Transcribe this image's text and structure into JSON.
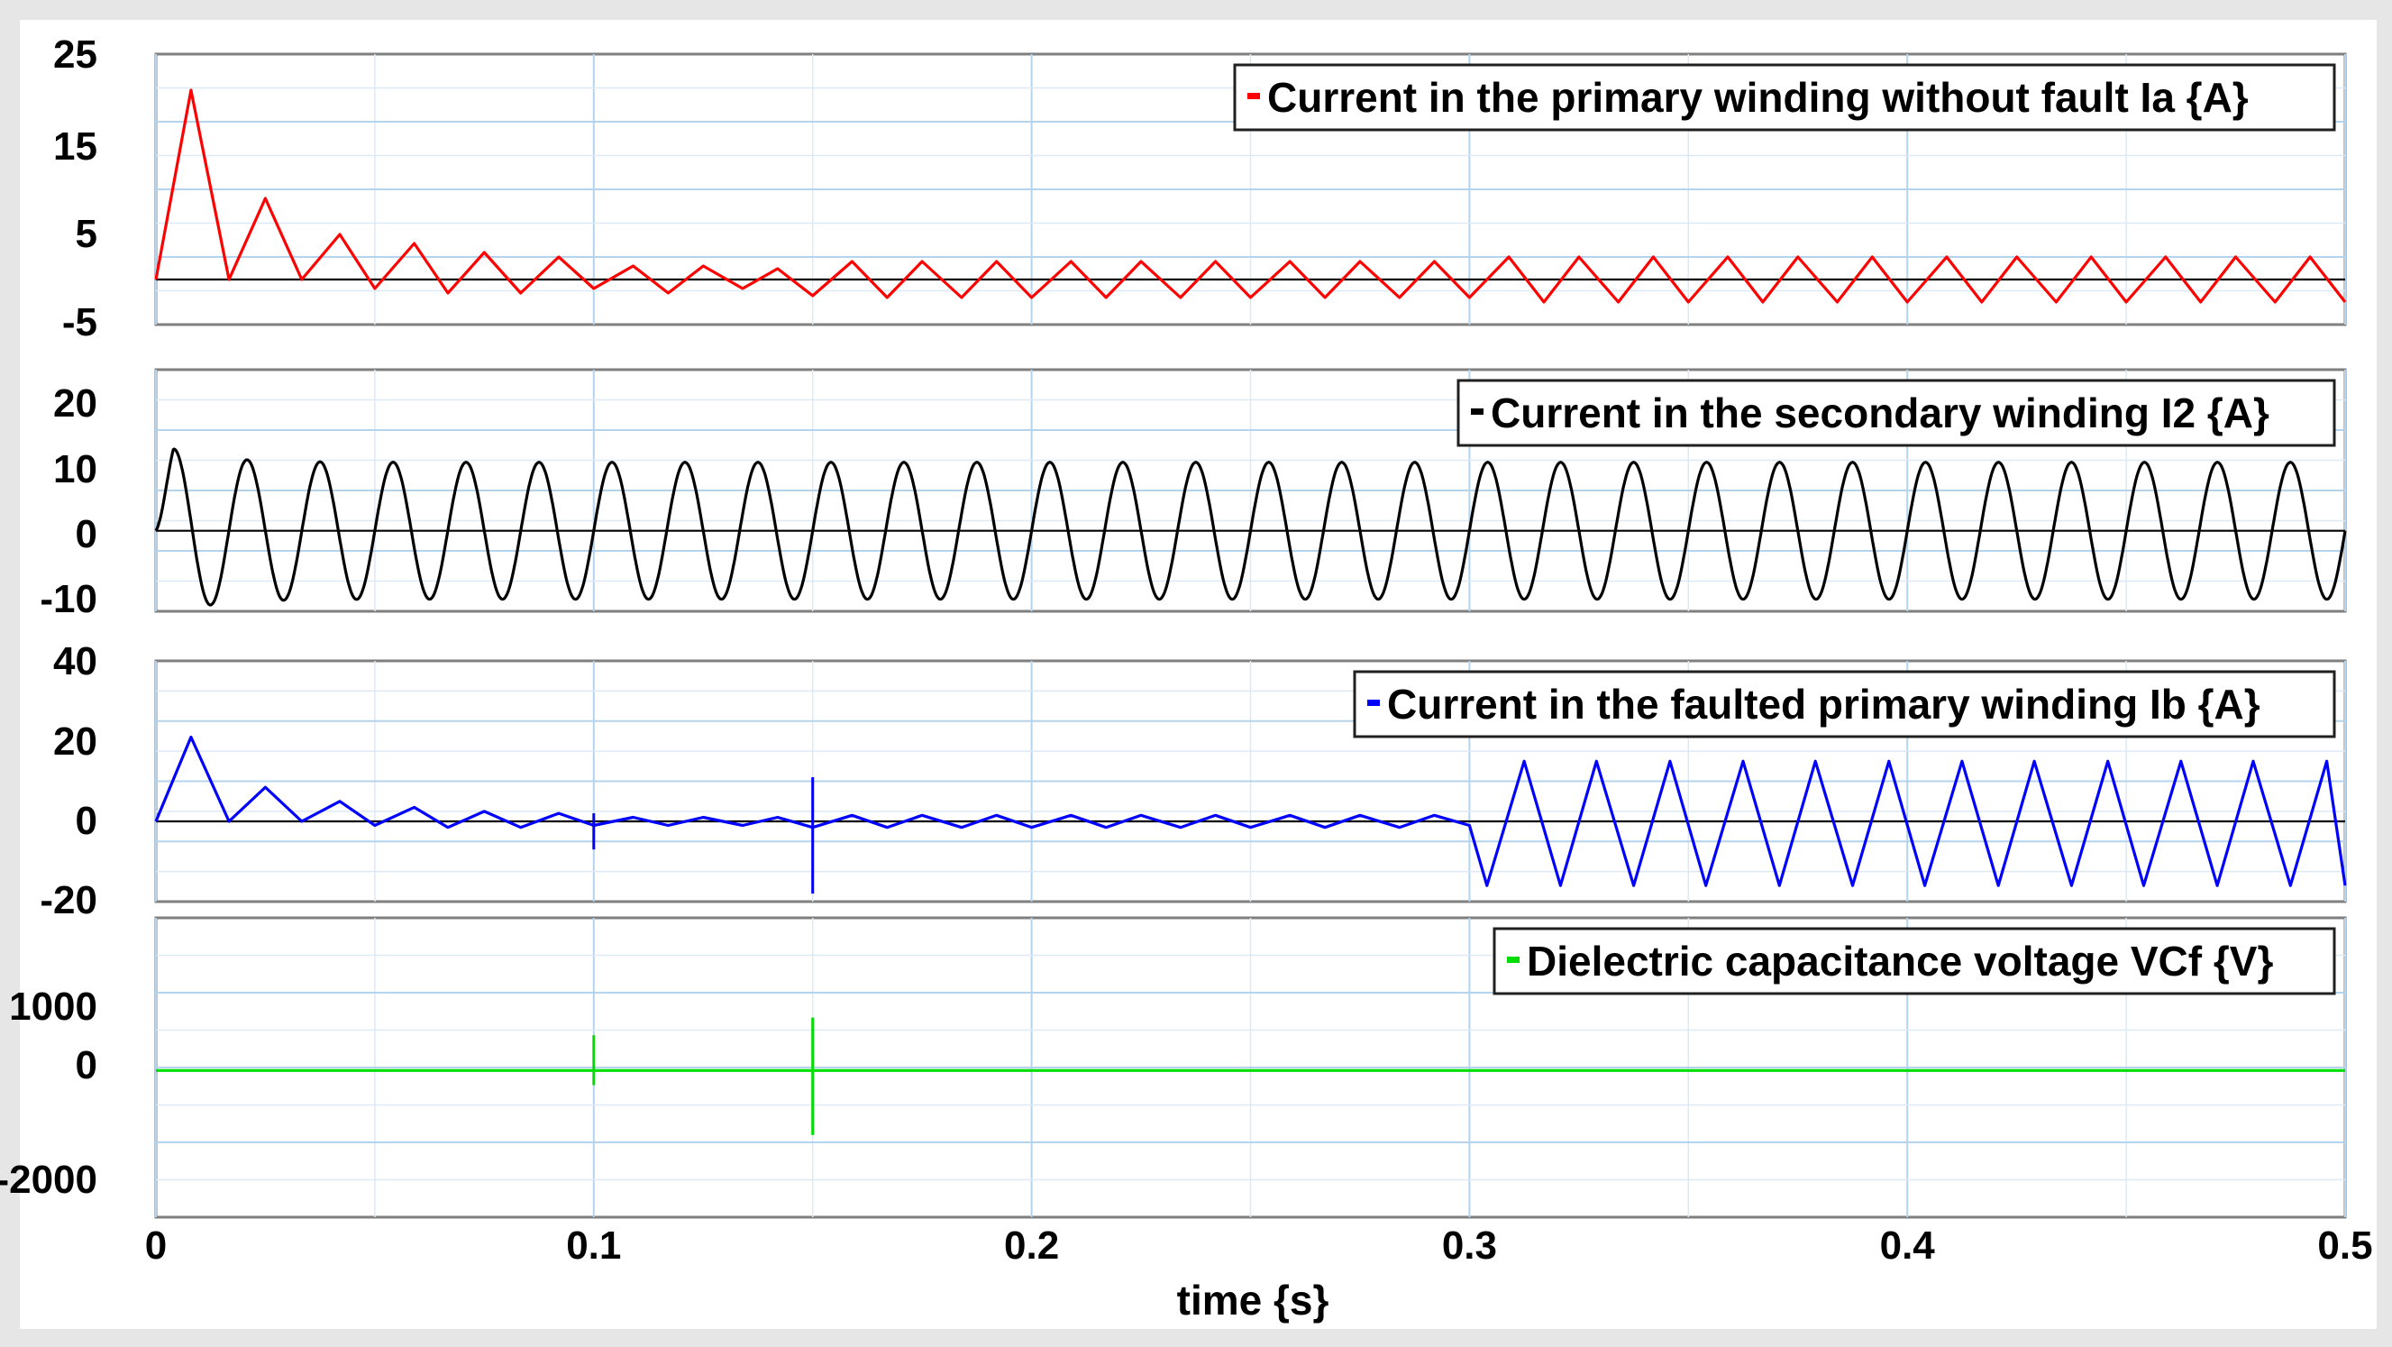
{
  "chart_data": [
    {
      "type": "line",
      "series": [
        {
          "name": "Current in the primary winding without fault Ia {A}",
          "color": "#ff0000",
          "x": [
            0.0,
            0.008,
            0.0167,
            0.025,
            0.0333,
            0.042,
            0.05,
            0.059,
            0.0667,
            0.075,
            0.0833,
            0.092,
            0.1,
            0.109,
            0.117,
            0.125,
            0.134,
            0.142,
            0.15,
            0.159,
            0.167,
            0.175,
            0.184,
            0.192,
            0.2,
            0.209,
            0.217,
            0.225,
            0.234,
            0.242,
            0.25,
            0.259,
            0.267,
            0.275,
            0.284,
            0.292,
            0.3,
            0.309,
            0.317,
            0.325,
            0.334,
            0.342,
            0.35,
            0.359,
            0.367,
            0.375,
            0.384,
            0.392,
            0.4,
            0.409,
            0.417,
            0.425,
            0.434,
            0.442,
            0.45,
            0.459,
            0.467,
            0.475,
            0.484,
            0.492,
            0.5
          ],
          "y": [
            0,
            21,
            0,
            9,
            0,
            5,
            -1,
            4,
            -1.5,
            3,
            -1.5,
            2.5,
            -1,
            1.5,
            -1.5,
            1.5,
            -1,
            1.2,
            -1.8,
            2,
            -2,
            2,
            -2,
            2,
            -2,
            2,
            -2,
            2,
            -2,
            2,
            -2,
            2,
            -2,
            2,
            -2,
            2,
            -2,
            2.5,
            -2.5,
            2.5,
            -2.5,
            2.5,
            -2.5,
            2.5,
            -2.5,
            2.5,
            -2.5,
            2.5,
            -2.5,
            2.5,
            -2.5,
            2.5,
            -2.5,
            2.5,
            -2.5,
            2.5,
            -2.5,
            2.5,
            -2.5,
            2.5,
            -2.5
          ]
        }
      ],
      "y_ticks": [
        "25",
        "15",
        "5",
        "-5"
      ],
      "ylim": [
        -5,
        25
      ],
      "xlim": [
        0,
        0.5
      ],
      "grid": true,
      "legend": "top-right"
    },
    {
      "type": "line",
      "series": [
        {
          "name": "Current in the secondary winding I2 {A}",
          "color": "#000000",
          "waveform": "sinusoid",
          "frequency_hz": 60,
          "amplitude": 8.5,
          "first_peak": 11,
          "x_range": [
            0,
            0.5
          ]
        }
      ],
      "y_ticks": [
        "20",
        "10",
        "0",
        "-10"
      ],
      "ylim": [
        -10,
        20
      ],
      "xlim": [
        0,
        0.5
      ],
      "grid": true,
      "legend": "top-right"
    },
    {
      "type": "line",
      "series": [
        {
          "name": "Current in the faulted primary winding Ib {A}",
          "color": "#0000ff",
          "x": [
            0.0,
            0.008,
            0.0167,
            0.025,
            0.0333,
            0.042,
            0.05,
            0.059,
            0.0667,
            0.075,
            0.0833,
            0.092,
            0.1,
            0.109,
            0.117,
            0.125,
            0.134,
            0.142,
            0.15,
            0.159,
            0.167,
            0.175,
            0.184,
            0.192,
            0.2,
            0.209,
            0.217,
            0.225,
            0.234,
            0.242,
            0.25,
            0.259,
            0.267,
            0.275,
            0.284,
            0.292,
            0.3,
            0.304,
            0.3125,
            0.3208,
            0.329,
            0.3375,
            0.3458,
            0.354,
            0.3625,
            0.3708,
            0.379,
            0.3875,
            0.3958,
            0.404,
            0.4125,
            0.4208,
            0.429,
            0.4375,
            0.4458,
            0.454,
            0.4625,
            0.4708,
            0.479,
            0.4875,
            0.4958,
            0.5
          ],
          "y": [
            0,
            21,
            0,
            8.5,
            0,
            5,
            -1,
            3.5,
            -1.5,
            2.5,
            -1.5,
            2,
            -1,
            1,
            -1,
            1,
            -1,
            1,
            -1.5,
            1.5,
            -1.5,
            1.5,
            -1.5,
            1.5,
            -1.5,
            1.5,
            -1.5,
            1.5,
            -1.5,
            1.5,
            -1.5,
            1.5,
            -1.5,
            1.5,
            -1.5,
            1.5,
            -1,
            -16,
            15,
            -16,
            15,
            -16,
            15,
            -16,
            15,
            -16,
            15,
            -16,
            15,
            -16,
            15,
            -16,
            15,
            -16,
            15,
            -16,
            15,
            -16,
            15,
            -16,
            15,
            -16
          ],
          "spikes": [
            {
              "x": 0.1,
              "y_max": 2,
              "y_min": -7
            },
            {
              "x": 0.15,
              "y_max": 11,
              "y_min": -18
            }
          ]
        }
      ],
      "y_ticks": [
        "40",
        "20",
        "0",
        "-20"
      ],
      "ylim": [
        -20,
        40
      ],
      "xlim": [
        0,
        0.5
      ],
      "grid": true,
      "legend": "top-right"
    },
    {
      "type": "line",
      "series": [
        {
          "name": "Dielectric capacitance voltage VCf {V}",
          "color": "#00dd00",
          "x": [
            0.0,
            0.5
          ],
          "y": [
            0,
            0
          ],
          "spikes": [
            {
              "x": 0.1,
              "y_max": 600,
              "y_min": -250
            },
            {
              "x": 0.15,
              "y_max": 900,
              "y_min": -1100
            }
          ]
        }
      ],
      "y_ticks": [
        "1000",
        "0",
        "-2000"
      ],
      "ylim": [
        -2500,
        2600
      ],
      "xlim": [
        0,
        0.5
      ],
      "grid": true,
      "legend": "top-right"
    }
  ],
  "x_axis": {
    "label": "time {s}",
    "ticks": [
      "0",
      "0.1",
      "0.2",
      "0.3",
      "0.4",
      "0.5"
    ]
  },
  "frame_color": "#e6e6e6"
}
